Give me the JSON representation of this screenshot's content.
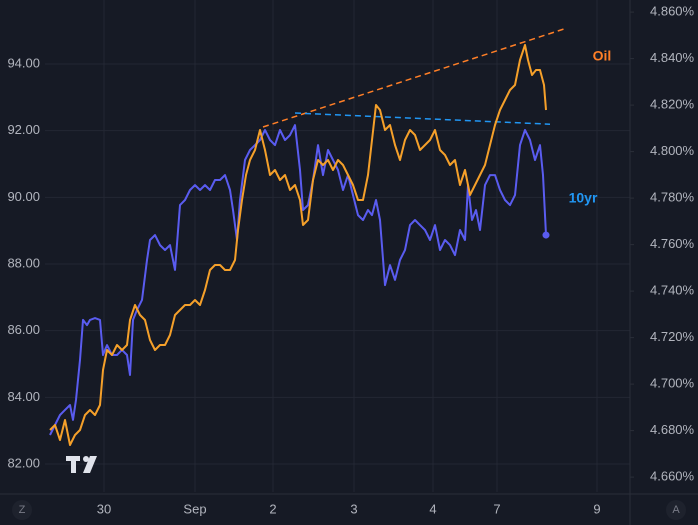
{
  "chart_data": {
    "type": "line",
    "grid": true,
    "background": "#161a25",
    "xlim": [
      0,
      585
    ],
    "xticks": [
      {
        "value": 59,
        "label": "30"
      },
      {
        "value": 150,
        "label": "Sep"
      },
      {
        "value": 228,
        "label": "2"
      },
      {
        "value": 309,
        "label": "3"
      },
      {
        "value": 388,
        "label": "4"
      },
      {
        "value": 452,
        "label": "7"
      },
      {
        "value": 552,
        "label": "9"
      }
    ],
    "ylim": [
      81.16,
      95.92
    ],
    "yticks": [
      {
        "value": 82,
        "label": "82.00"
      },
      {
        "value": 84,
        "label": "84.00"
      },
      {
        "value": 86,
        "label": "86.00"
      },
      {
        "value": 88,
        "label": "88.00"
      },
      {
        "value": 90,
        "label": "90.00"
      },
      {
        "value": 92,
        "label": "92.00"
      },
      {
        "value": 94,
        "label": "94.00"
      }
    ],
    "y2lim": [
      4.6536,
      4.8652
    ],
    "y2ticks": [
      {
        "value": 4.66,
        "label": "4.660%"
      },
      {
        "value": 4.68,
        "label": "4.680%"
      },
      {
        "value": 4.7,
        "label": "4.700%"
      },
      {
        "value": 4.72,
        "label": "4.720%"
      },
      {
        "value": 4.74,
        "label": "4.740%"
      },
      {
        "value": 4.76,
        "label": "4.760%"
      },
      {
        "value": 4.78,
        "label": "4.780%"
      },
      {
        "value": 4.8,
        "label": "4.800%"
      },
      {
        "value": 4.82,
        "label": "4.820%"
      },
      {
        "value": 4.84,
        "label": "4.840%"
      },
      {
        "value": 4.86,
        "label": "4.860%"
      }
    ],
    "series": [
      {
        "name": "Oil",
        "color": "#f5a02a",
        "axis": "y",
        "x": [
          5,
          10,
          15,
          20,
          25,
          30,
          35,
          40,
          45,
          50,
          55,
          58,
          62,
          67,
          72,
          77,
          82,
          85,
          90,
          95,
          100,
          105,
          110,
          115,
          120,
          125,
          130,
          135,
          140,
          145,
          150,
          155,
          160,
          165,
          170,
          175,
          180,
          185,
          190,
          193,
          197,
          201,
          205,
          210,
          215,
          220,
          225,
          230,
          235,
          240,
          245,
          250,
          255,
          258,
          263,
          268,
          273,
          278,
          283,
          288,
          293,
          298,
          303,
          308,
          313,
          318,
          323,
          327,
          331,
          335,
          340,
          345,
          350,
          355,
          360,
          365,
          370,
          375,
          380,
          385,
          390,
          395,
          400,
          405,
          410,
          415,
          420,
          425,
          430,
          435,
          440,
          445,
          450,
          455,
          460,
          465,
          470,
          475,
          480,
          483,
          487,
          491,
          495,
          499,
          501
        ],
        "values": [
          83.02,
          83.17,
          82.72,
          83.32,
          82.57,
          82.87,
          83.02,
          83.47,
          83.62,
          83.47,
          83.77,
          84.82,
          85.42,
          85.27,
          85.57,
          85.42,
          85.57,
          86.32,
          86.77,
          86.47,
          86.32,
          85.72,
          85.42,
          85.57,
          85.57,
          85.87,
          86.47,
          86.62,
          86.77,
          86.77,
          86.92,
          86.77,
          87.22,
          87.82,
          87.97,
          87.97,
          87.82,
          87.82,
          88.12,
          89.02,
          89.92,
          90.67,
          91.12,
          91.42,
          92.02,
          91.42,
          90.67,
          90.82,
          90.52,
          90.67,
          90.22,
          90.37,
          89.92,
          89.17,
          89.32,
          90.52,
          91.12,
          90.97,
          91.12,
          90.82,
          91.12,
          90.97,
          90.67,
          90.37,
          89.92,
          89.92,
          90.67,
          91.72,
          92.77,
          92.62,
          92.02,
          92.17,
          91.57,
          91.12,
          91.72,
          92.02,
          91.87,
          91.42,
          91.57,
          91.72,
          92.02,
          91.42,
          91.27,
          90.97,
          91.12,
          90.37,
          90.82,
          90.07,
          90.37,
          90.67,
          90.97,
          91.57,
          92.17,
          92.62,
          92.92,
          93.22,
          93.37,
          94.12,
          94.57,
          94.12,
          93.67,
          93.82,
          93.82,
          93.37,
          92.62
        ]
      },
      {
        "name": "10yr",
        "color": "#5a5cf0",
        "axis": "y2",
        "x": [
          5,
          10,
          15,
          20,
          25,
          28,
          31,
          35,
          38,
          42,
          45,
          50,
          55,
          58,
          62,
          67,
          72,
          77,
          82,
          85,
          88,
          92,
          97,
          102,
          105,
          110,
          115,
          120,
          125,
          130,
          135,
          140,
          145,
          150,
          155,
          160,
          165,
          170,
          175,
          180,
          185,
          188,
          192,
          195,
          200,
          205,
          210,
          215,
          220,
          225,
          230,
          235,
          240,
          245,
          250,
          255,
          258,
          263,
          268,
          273,
          278,
          283,
          288,
          293,
          298,
          303,
          308,
          313,
          318,
          323,
          327,
          331,
          335,
          340,
          345,
          350,
          355,
          360,
          365,
          370,
          375,
          380,
          385,
          390,
          395,
          400,
          405,
          410,
          415,
          420,
          423,
          427,
          431,
          435,
          440,
          445,
          450,
          455,
          460,
          465,
          470,
          475,
          480,
          485,
          490,
          495,
          498,
          501
        ],
        "values": [
          4.6781,
          4.6824,
          4.6867,
          4.6889,
          4.691,
          4.6846,
          4.6932,
          4.7104,
          4.7276,
          4.7254,
          4.7276,
          4.7284,
          4.7276,
          4.7125,
          4.7168,
          4.7125,
          4.7125,
          4.7147,
          4.7125,
          4.7039,
          4.7276,
          4.7319,
          4.7362,
          4.7534,
          4.762,
          4.7641,
          4.7598,
          4.7577,
          4.7598,
          4.7491,
          4.777,
          4.7792,
          4.7835,
          4.7856,
          4.7835,
          4.7856,
          4.7835,
          4.7878,
          4.7878,
          4.7899,
          4.7835,
          4.7749,
          4.762,
          4.7792,
          4.7964,
          4.8007,
          4.8028,
          4.805,
          4.8093,
          4.805,
          4.8028,
          4.8093,
          4.805,
          4.8071,
          4.8114,
          4.7921,
          4.7749,
          4.777,
          4.7878,
          4.8028,
          4.7899,
          4.8007,
          4.7964,
          4.7921,
          4.7835,
          4.7899,
          4.7813,
          4.7727,
          4.7706,
          4.7749,
          4.7727,
          4.7792,
          4.7706,
          4.7426,
          4.7512,
          4.7448,
          4.7534,
          4.7577,
          4.7684,
          4.7706,
          4.7684,
          4.7663,
          4.762,
          4.7684,
          4.7577,
          4.762,
          4.7598,
          4.7555,
          4.7663,
          4.762,
          4.7856,
          4.7706,
          4.7749,
          4.7663,
          4.7856,
          4.7899,
          4.7899,
          4.7835,
          4.7792,
          4.777,
          4.7813,
          4.8028,
          4.8093,
          4.805,
          4.7964,
          4.8028,
          4.7899,
          4.7641
        ]
      }
    ],
    "trendlines": [
      {
        "x": [
          218,
          522
        ],
        "values": [
          92.11,
          95.08
        ],
        "color": "#ff7f27",
        "axis": "y"
      },
      {
        "x": [
          250,
          505
        ],
        "values": [
          4.8166,
          4.8118
        ],
        "color": "#2196f3",
        "axis": "y2"
      }
    ],
    "controls": {
      "left_button": "Z",
      "right_button": "A"
    }
  }
}
